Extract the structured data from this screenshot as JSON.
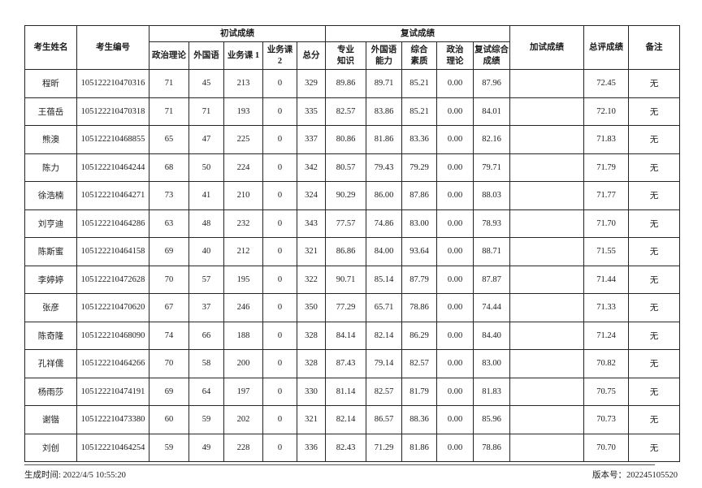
{
  "table": {
    "header": {
      "candidate_name": "考生姓名",
      "candidate_id": "考生编号",
      "initial_group": "初试成绩",
      "retest_group": "复试成绩",
      "initial_cols": [
        "政治理论",
        "外国语",
        "业务课 1",
        "业务课 2",
        "总分"
      ],
      "retest_cols": [
        "专业\n知识",
        "外国语\n能力",
        "综合\n素质",
        "政治\n理论",
        "复试综合\n成绩"
      ],
      "additional_test": "加试成绩",
      "overall_score": "总评成绩",
      "remark": "备注"
    },
    "rows": [
      [
        "程昕",
        "105122210470316",
        "71",
        "45",
        "213",
        "0",
        "329",
        "89.86",
        "89.71",
        "85.21",
        "0.00",
        "87.96",
        "",
        "72.45",
        "无"
      ],
      [
        "王蓓岳",
        "105122210470318",
        "71",
        "71",
        "193",
        "0",
        "335",
        "82.57",
        "83.86",
        "85.21",
        "0.00",
        "84.01",
        "",
        "72.10",
        "无"
      ],
      [
        "熊澳",
        "105122210468855",
        "65",
        "47",
        "225",
        "0",
        "337",
        "80.86",
        "81.86",
        "83.36",
        "0.00",
        "82.16",
        "",
        "71.83",
        "无"
      ],
      [
        "陈力",
        "105122210464244",
        "68",
        "50",
        "224",
        "0",
        "342",
        "80.57",
        "79.43",
        "79.29",
        "0.00",
        "79.71",
        "",
        "71.79",
        "无"
      ],
      [
        "徐浩楠",
        "105122210464271",
        "73",
        "41",
        "210",
        "0",
        "324",
        "90.29",
        "86.00",
        "87.86",
        "0.00",
        "88.03",
        "",
        "71.77",
        "无"
      ],
      [
        "刘亨迪",
        "105122210464286",
        "63",
        "48",
        "232",
        "0",
        "343",
        "77.57",
        "74.86",
        "83.00",
        "0.00",
        "78.93",
        "",
        "71.70",
        "无"
      ],
      [
        "陈斯蜜",
        "105122210464158",
        "69",
        "40",
        "212",
        "0",
        "321",
        "86.86",
        "84.00",
        "93.64",
        "0.00",
        "88.71",
        "",
        "71.55",
        "无"
      ],
      [
        "李婷婷",
        "105122210472628",
        "70",
        "57",
        "195",
        "0",
        "322",
        "90.71",
        "85.14",
        "87.79",
        "0.00",
        "87.87",
        "",
        "71.44",
        "无"
      ],
      [
        "张彦",
        "105122210470620",
        "67",
        "37",
        "246",
        "0",
        "350",
        "77.29",
        "65.71",
        "78.86",
        "0.00",
        "74.44",
        "",
        "71.33",
        "无"
      ],
      [
        "陈奇隆",
        "105122210468090",
        "74",
        "66",
        "188",
        "0",
        "328",
        "84.14",
        "82.14",
        "86.29",
        "0.00",
        "84.40",
        "",
        "71.24",
        "无"
      ],
      [
        "孔祥儒",
        "105122210464266",
        "70",
        "58",
        "200",
        "0",
        "328",
        "87.43",
        "79.14",
        "82.57",
        "0.00",
        "83.00",
        "",
        "70.82",
        "无"
      ],
      [
        "杨雨莎",
        "105122210474191",
        "69",
        "64",
        "197",
        "0",
        "330",
        "81.14",
        "82.57",
        "81.79",
        "0.00",
        "81.83",
        "",
        "70.75",
        "无"
      ],
      [
        "谢锴",
        "105122210473380",
        "60",
        "59",
        "202",
        "0",
        "321",
        "82.14",
        "86.57",
        "88.36",
        "0.00",
        "85.96",
        "",
        "70.73",
        "无"
      ],
      [
        "刘创",
        "105122210464254",
        "59",
        "49",
        "228",
        "0",
        "336",
        "82.43",
        "71.29",
        "81.86",
        "0.00",
        "78.86",
        "",
        "70.70",
        "无"
      ]
    ]
  },
  "footer": {
    "generated_label": "生成时间: 2022/4/5 10:55:20",
    "version_label": "版本号：202245105520"
  }
}
